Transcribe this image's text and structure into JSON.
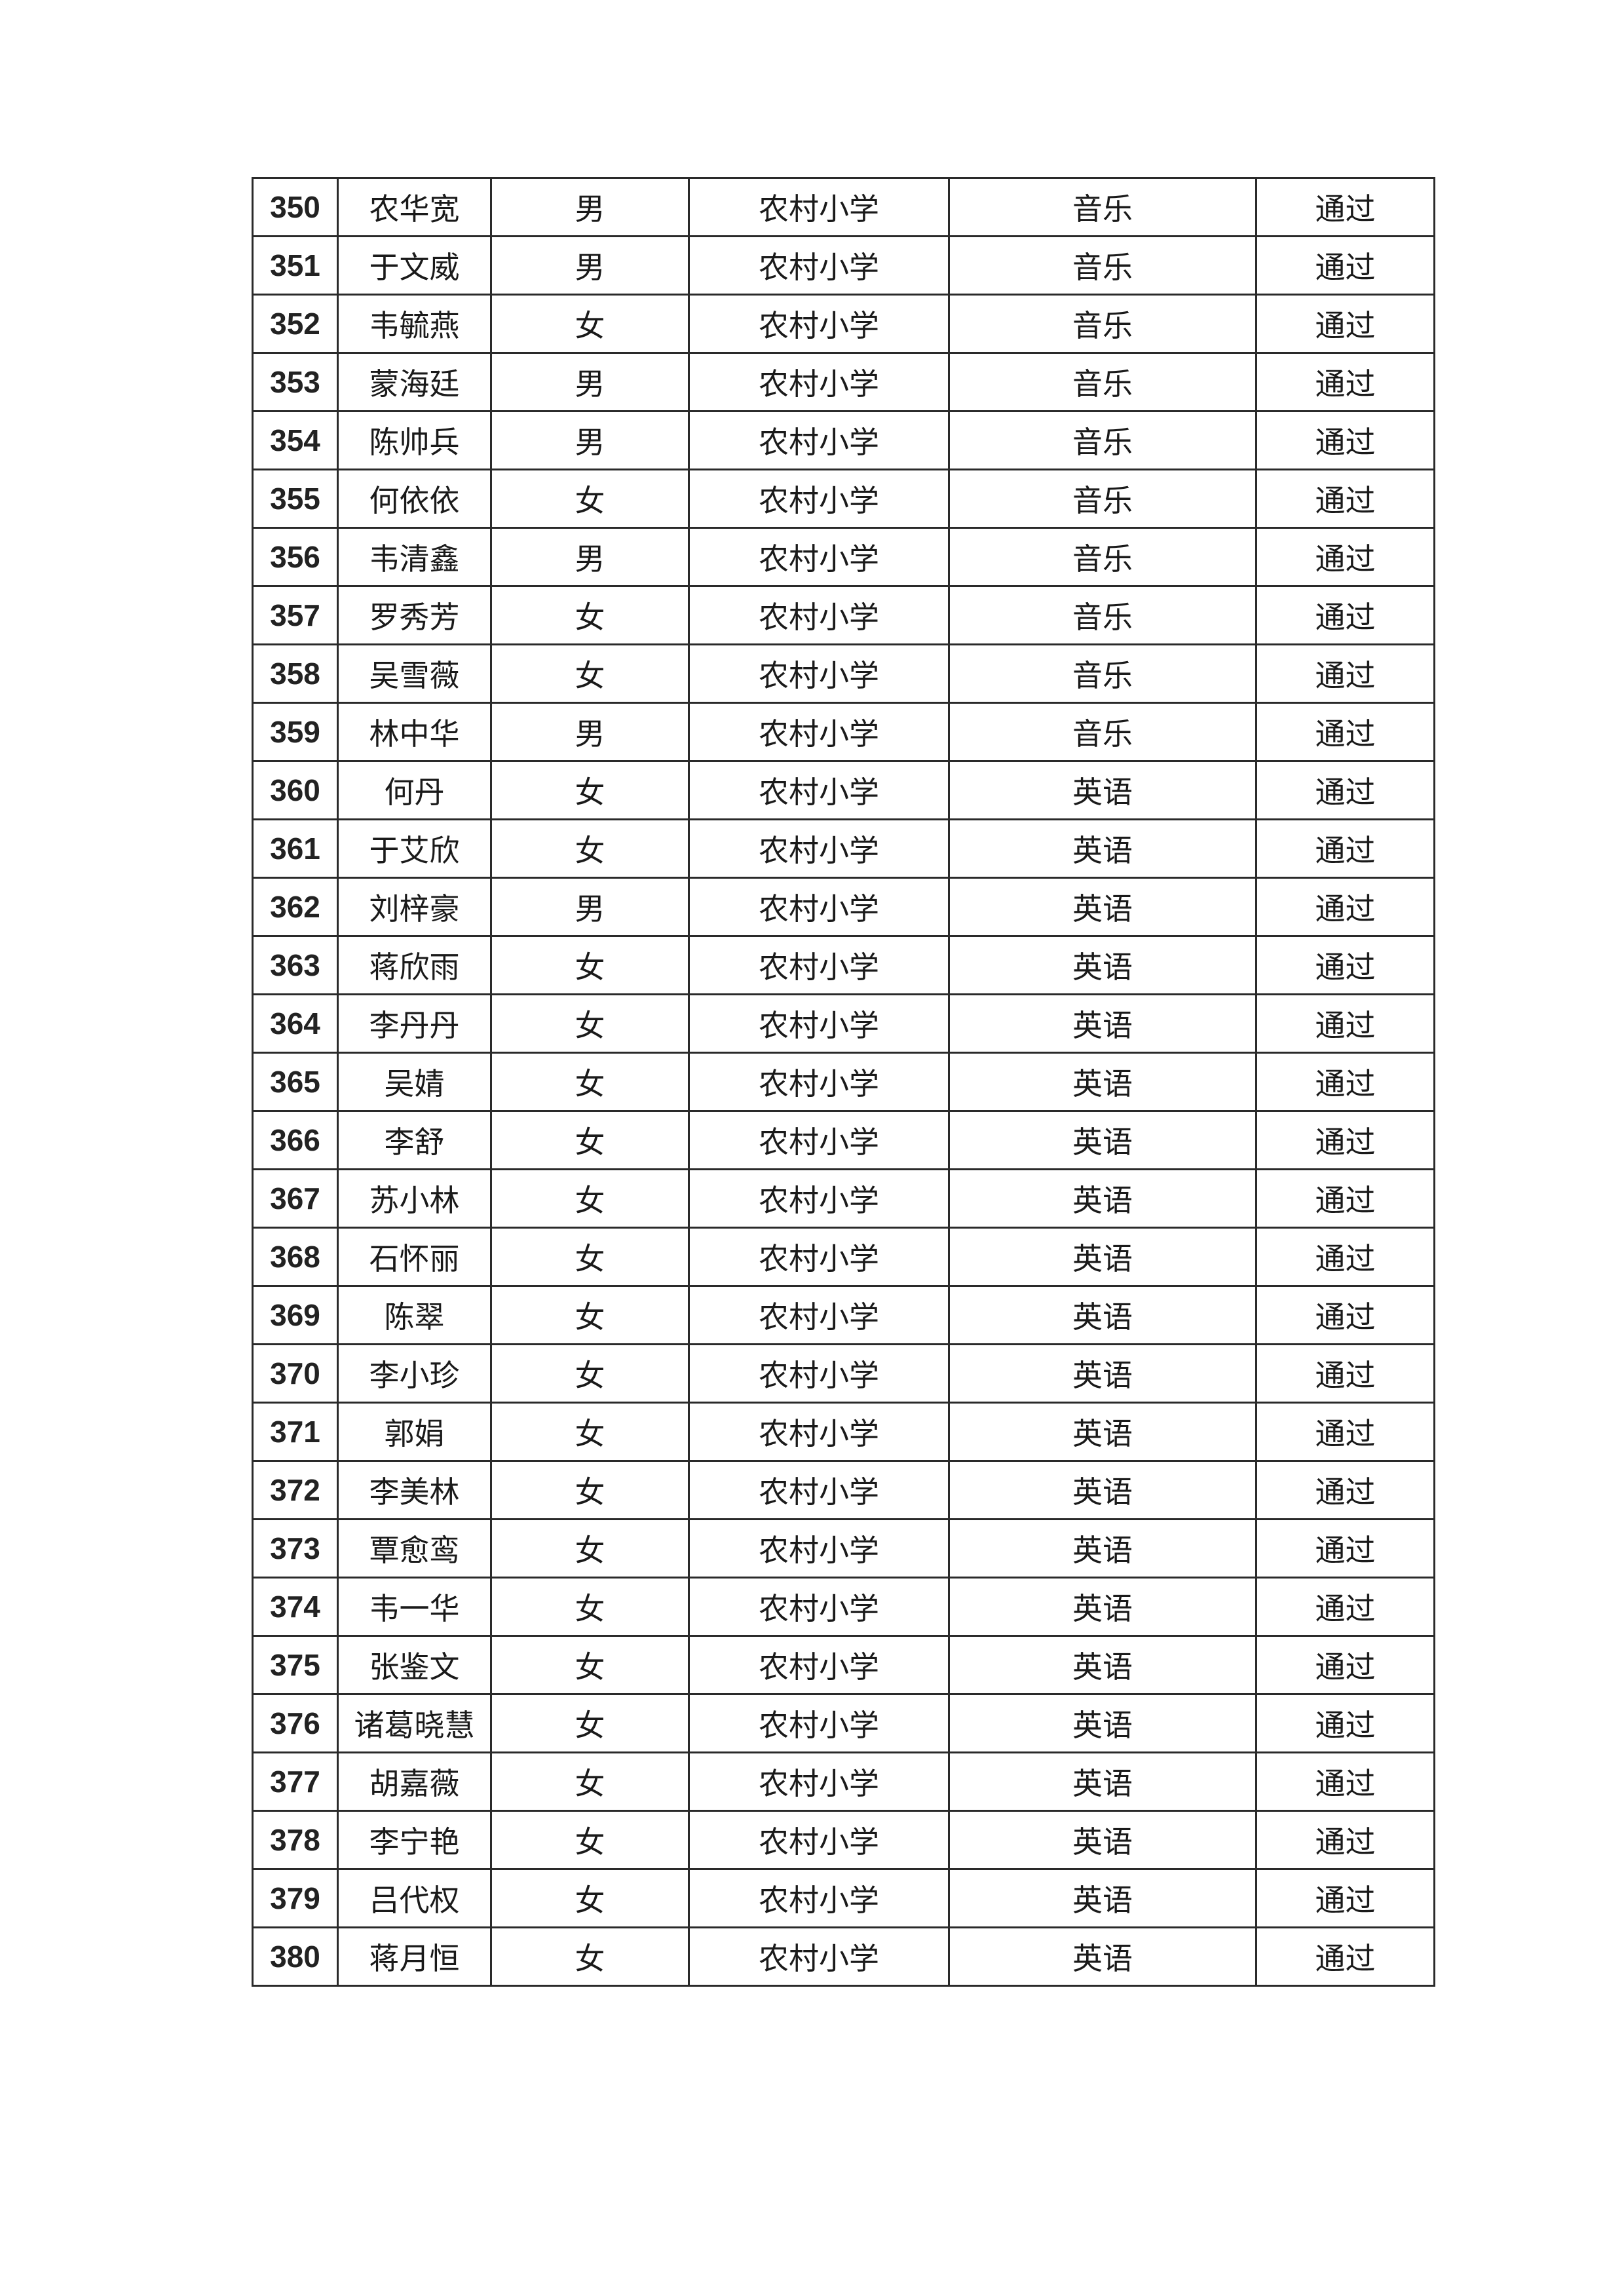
{
  "table": {
    "rows": [
      [
        "350",
        "农华宽",
        "男",
        "农村小学",
        "音乐",
        "通过"
      ],
      [
        "351",
        "于文威",
        "男",
        "农村小学",
        "音乐",
        "通过"
      ],
      [
        "352",
        "韦毓燕",
        "女",
        "农村小学",
        "音乐",
        "通过"
      ],
      [
        "353",
        "蒙海廷",
        "男",
        "农村小学",
        "音乐",
        "通过"
      ],
      [
        "354",
        "陈帅兵",
        "男",
        "农村小学",
        "音乐",
        "通过"
      ],
      [
        "355",
        "何依依",
        "女",
        "农村小学",
        "音乐",
        "通过"
      ],
      [
        "356",
        "韦清鑫",
        "男",
        "农村小学",
        "音乐",
        "通过"
      ],
      [
        "357",
        "罗秀芳",
        "女",
        "农村小学",
        "音乐",
        "通过"
      ],
      [
        "358",
        "吴雪薇",
        "女",
        "农村小学",
        "音乐",
        "通过"
      ],
      [
        "359",
        "林中华",
        "男",
        "农村小学",
        "音乐",
        "通过"
      ],
      [
        "360",
        "何丹",
        "女",
        "农村小学",
        "英语",
        "通过"
      ],
      [
        "361",
        "于艾欣",
        "女",
        "农村小学",
        "英语",
        "通过"
      ],
      [
        "362",
        "刘梓豪",
        "男",
        "农村小学",
        "英语",
        "通过"
      ],
      [
        "363",
        "蒋欣雨",
        "女",
        "农村小学",
        "英语",
        "通过"
      ],
      [
        "364",
        "李丹丹",
        "女",
        "农村小学",
        "英语",
        "通过"
      ],
      [
        "365",
        "吴婧",
        "女",
        "农村小学",
        "英语",
        "通过"
      ],
      [
        "366",
        "李舒",
        "女",
        "农村小学",
        "英语",
        "通过"
      ],
      [
        "367",
        "苏小林",
        "女",
        "农村小学",
        "英语",
        "通过"
      ],
      [
        "368",
        "石怀丽",
        "女",
        "农村小学",
        "英语",
        "通过"
      ],
      [
        "369",
        "陈翠",
        "女",
        "农村小学",
        "英语",
        "通过"
      ],
      [
        "370",
        "李小珍",
        "女",
        "农村小学",
        "英语",
        "通过"
      ],
      [
        "371",
        "郭娟",
        "女",
        "农村小学",
        "英语",
        "通过"
      ],
      [
        "372",
        "李美林",
        "女",
        "农村小学",
        "英语",
        "通过"
      ],
      [
        "373",
        "覃愈鸾",
        "女",
        "农村小学",
        "英语",
        "通过"
      ],
      [
        "374",
        "韦一华",
        "女",
        "农村小学",
        "英语",
        "通过"
      ],
      [
        "375",
        "张鉴文",
        "女",
        "农村小学",
        "英语",
        "通过"
      ],
      [
        "376",
        "诸葛晓慧",
        "女",
        "农村小学",
        "英语",
        "通过"
      ],
      [
        "377",
        "胡嘉薇",
        "女",
        "农村小学",
        "英语",
        "通过"
      ],
      [
        "378",
        "李宁艳",
        "女",
        "农村小学",
        "英语",
        "通过"
      ],
      [
        "379",
        "吕代权",
        "女",
        "农村小学",
        "英语",
        "通过"
      ],
      [
        "380",
        "蒋月恒",
        "女",
        "农村小学",
        "英语",
        "通过"
      ]
    ]
  }
}
